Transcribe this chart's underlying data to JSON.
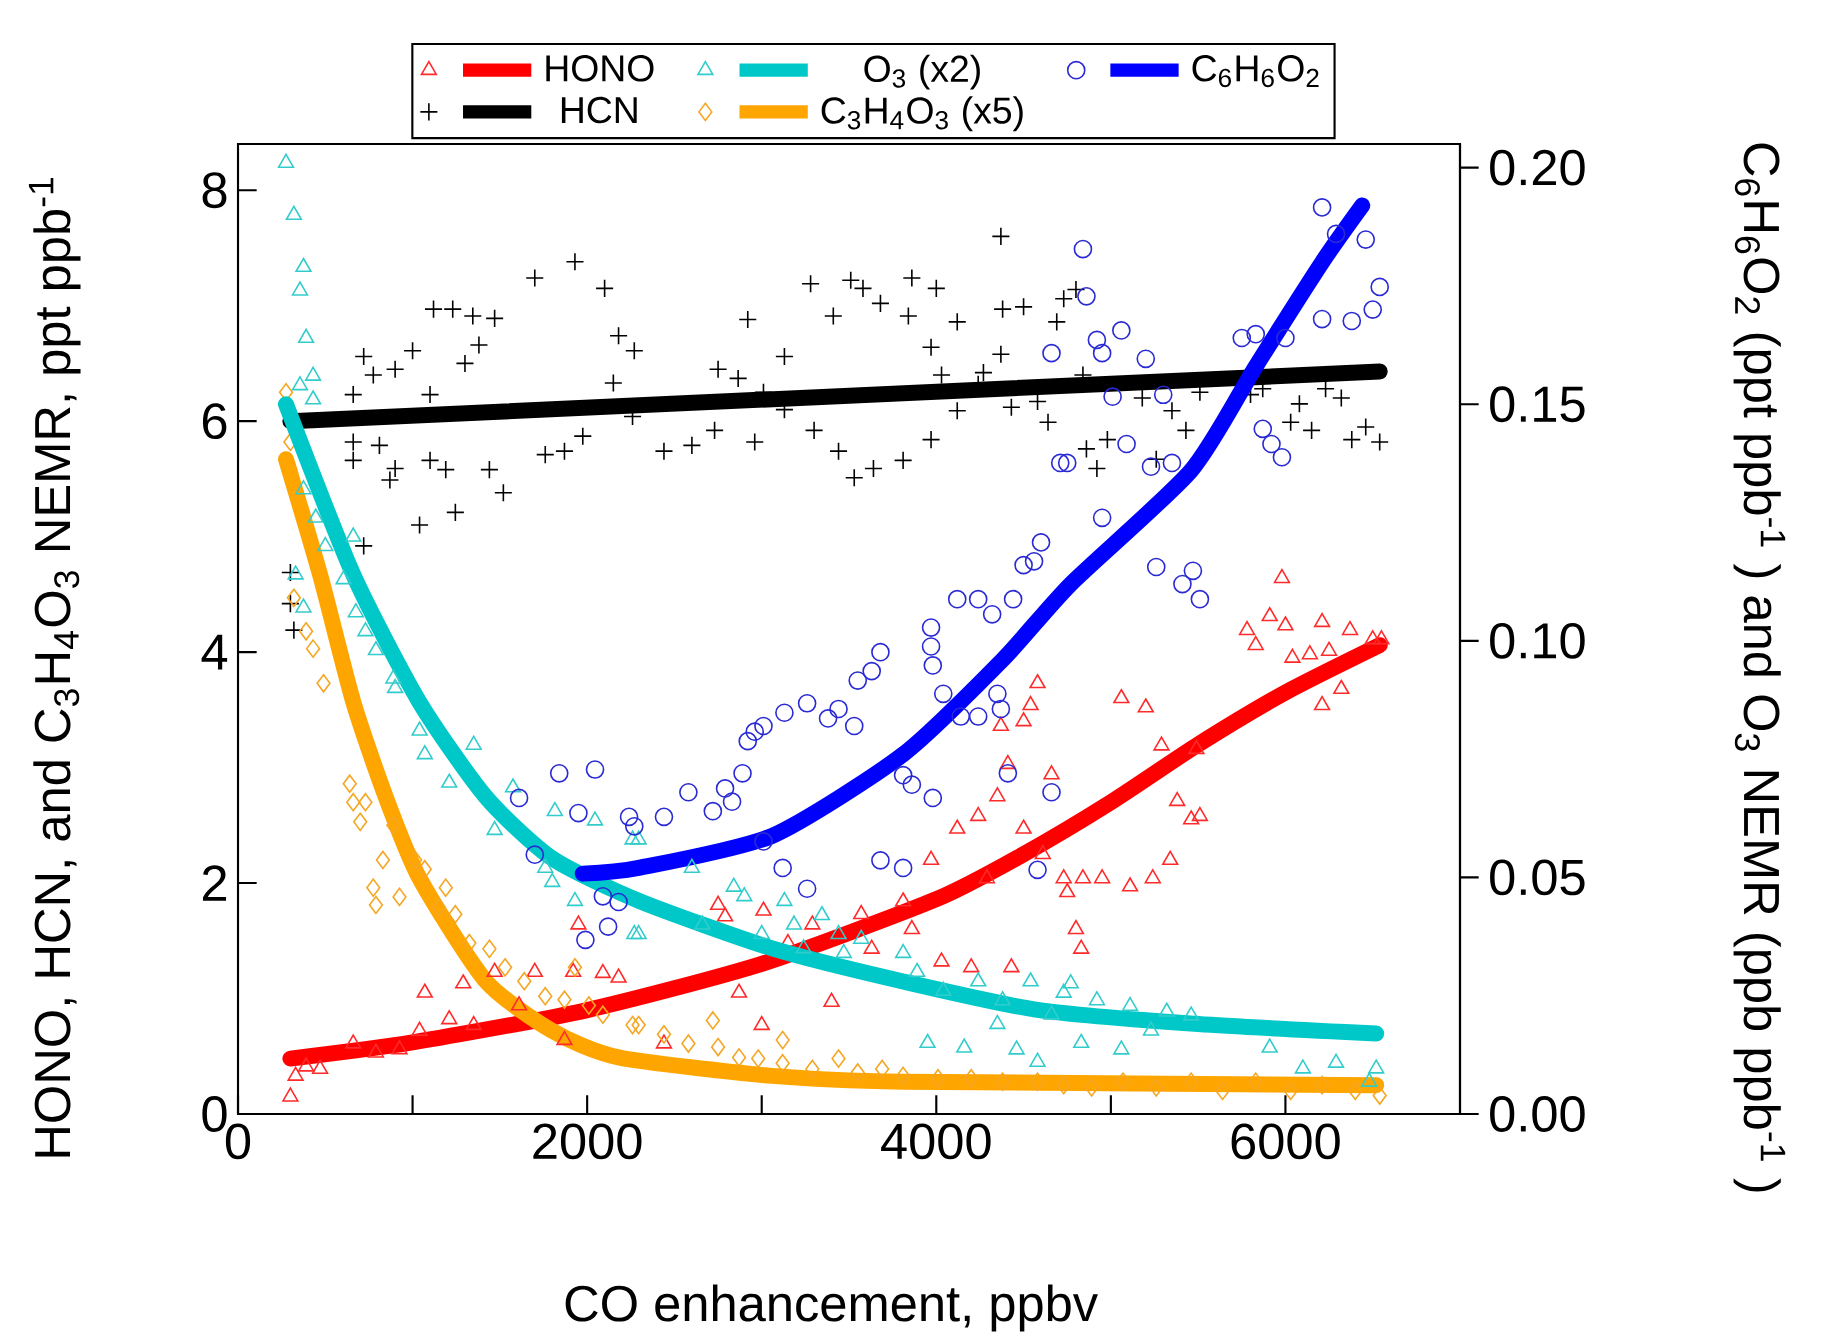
{
  "chart_data": {
    "type": "scatter",
    "xlabel": "CO enhancement, ppbv",
    "ylabel": "HONO, HCN, and C$_{3}$H$_{4}$O$_{3}$ NEMR, ppt ppb$^{-1}$",
    "y2label": "C$_{6}$H$_{6}$O$_{2}$ (ppt ppb$^{-1}$ ) and O$_{3}$ NEMR (ppb ppb$^{-1}$ )",
    "xlim": [
      0,
      7000
    ],
    "xticks": [
      0,
      {
        "value": 1000,
        "label": null
      },
      2000,
      {
        "value": 3000,
        "label": null
      },
      4000,
      {
        "value": 5000,
        "label": null
      },
      6000
    ],
    "ylim": [
      0,
      8.4
    ],
    "yticks": [
      0,
      2,
      4,
      6,
      8
    ],
    "y2lim": [
      0,
      0.205
    ],
    "y2ticks": [
      {
        "value": 0,
        "label": "0.00"
      },
      {
        "value": 0.05,
        "label": "0.05"
      },
      {
        "value": 0.1,
        "label": "0.10"
      },
      {
        "value": 0.15,
        "label": "0.15"
      },
      {
        "value": 0.2,
        "label": "0.20"
      }
    ],
    "legend": "top",
    "series": [
      {
        "type": "scatter",
        "marker": "triangle",
        "color": "#ff2a2a",
        "x": [
          300,
          330,
          390,
          470,
          660,
          790,
          925,
          1040,
          1070,
          1210,
          1290,
          1350,
          1470,
          1610,
          1700,
          1870,
          1920,
          1950,
          2090,
          2180,
          2440,
          2750,
          2790,
          2870,
          3000,
          3010,
          3150,
          3290,
          3400,
          3570,
          3630,
          3810,
          3860,
          3970,
          4030,
          4120,
          4200,
          4240,
          4290,
          4350,
          4370,
          4410,
          4430,
          4500,
          4500,
          4540,
          4580,
          4660,
          4610,
          4730,
          4750,
          4800,
          4830,
          4840,
          4950,
          5060,
          5110,
          5200,
          5240,
          5290,
          5340,
          5380,
          5460,
          5490,
          5510,
          5780,
          5830,
          5910,
          5980,
          6000,
          6040,
          6140,
          6210,
          6210,
          6250,
          6320,
          6370,
          6500,
          6550
        ],
        "values": [
          0.15,
          0.33,
          0.41,
          0.39,
          0.61,
          0.53,
          0.56,
          0.72,
          1.05,
          0.82,
          1.13,
          0.77,
          1.23,
          0.94,
          1.23,
          0.64,
          1.23,
          1.64,
          1.22,
          1.18,
          0.61,
          1.81,
          1.71,
          1.05,
          0.77,
          1.76,
          1.48,
          1.64,
          0.97,
          1.73,
          1.43,
          1.84,
          1.6,
          2.2,
          1.32,
          2.47,
          1.27,
          2.58,
          2.04,
          2.75,
          3.36,
          3.03,
          1.27,
          2.47,
          3.4,
          3.54,
          3.73,
          2.94,
          2.25,
          2.04,
          1.92,
          1.6,
          1.43,
          2.04,
          2.04,
          3.6,
          1.97,
          3.52,
          2.04,
          3.19,
          2.2,
          2.71,
          2.55,
          3.16,
          2.58,
          4.19,
          4.06,
          4.31,
          4.64,
          4.23,
          3.95,
          3.98,
          4.26,
          3.54,
          4.01,
          3.68,
          4.19,
          4.11,
          4.11
        ]
      },
      {
        "type": "line",
        "name": "HONO",
        "color": "#ff0000",
        "x": [
          300,
          1000,
          2000,
          3000,
          4000,
          4500,
          5000,
          5500,
          6000,
          6540
        ],
        "values": [
          0.48,
          0.62,
          0.9,
          1.3,
          1.86,
          2.25,
          2.7,
          3.2,
          3.65,
          4.06
        ]
      },
      {
        "type": "scatter",
        "marker": "triangle",
        "axis": "y2",
        "color": "#33cccc",
        "x": [
          275,
          320,
          375,
          355,
          390,
          430,
          355,
          430,
          375,
          445,
          330,
          375,
          500,
          660,
          605,
          675,
          730,
          790,
          890,
          900,
          1040,
          1070,
          1210,
          1350,
          1470,
          1575,
          1760,
          1800,
          1815,
          1930,
          2045,
          2260,
          2270,
          2295,
          2295,
          2600,
          2660,
          2840,
          2900,
          3000,
          3130,
          3185,
          3240,
          3345,
          3440,
          3470,
          3570,
          3810,
          3890,
          3950,
          4040,
          4160,
          4240,
          4350,
          4380,
          4460,
          4540,
          4580,
          4660,
          4730,
          4770,
          4830,
          4920,
          5060,
          5110,
          5230,
          5320,
          5460,
          5910,
          6100,
          6290,
          6480,
          6520
        ],
        "values": [
          0.201,
          0.19,
          0.179,
          0.174,
          0.164,
          0.156,
          0.154,
          0.151,
          0.132,
          0.126,
          0.114,
          0.107,
          0.12,
          0.122,
          0.113,
          0.106,
          0.102,
          0.098,
          0.092,
          0.09,
          0.081,
          0.076,
          0.07,
          0.078,
          0.06,
          0.069,
          0.052,
          0.049,
          0.064,
          0.045,
          0.062,
          0.058,
          0.038,
          0.058,
          0.038,
          0.052,
          0.04,
          0.048,
          0.046,
          0.038,
          0.045,
          0.04,
          0.035,
          0.042,
          0.038,
          0.034,
          0.037,
          0.034,
          0.03,
          0.015,
          0.026,
          0.014,
          0.028,
          0.019,
          0.024,
          0.0136,
          0.028,
          0.011,
          0.021,
          0.0256,
          0.0276,
          0.015,
          0.024,
          0.0136,
          0.0228,
          0.0176,
          0.0216,
          0.0208,
          0.014,
          0.0096,
          0.0108,
          0.0068,
          0.0096
        ]
      },
      {
        "type": "line",
        "name": "O$_{3}$ (x2)",
        "axis": "y2",
        "color": "#00c8c8",
        "x": [
          275,
          660,
          1040,
          1420,
          1800,
          2300,
          3060,
          3810,
          4580,
          5500,
          6520
        ],
        "values": [
          0.15,
          0.114,
          0.087,
          0.067,
          0.054,
          0.045,
          0.035,
          0.028,
          0.022,
          0.019,
          0.017
        ]
      },
      {
        "type": "scatter",
        "marker": "circle",
        "axis": "y2",
        "color": "#2a2ad4",
        "x": [
          1610,
          1700,
          1840,
          1950,
          2045,
          1990,
          2090,
          2120,
          2180,
          2240,
          2270,
          2440,
          2580,
          2720,
          2790,
          2830,
          2890,
          2920,
          2960,
          3010,
          3010,
          3120,
          3130,
          3260,
          3260,
          3380,
          3440,
          3530,
          3550,
          3630,
          3680,
          3680,
          3810,
          3810,
          3860,
          3970,
          3970,
          3980,
          3980,
          4040,
          4120,
          4140,
          4240,
          4240,
          4320,
          4350,
          4370,
          4410,
          4440,
          4500,
          4560,
          4580,
          4600,
          4660,
          4660,
          4710,
          4840,
          4860,
          4920,
          4950,
          5060,
          4750,
          4950,
          5010,
          5090,
          5200,
          5230,
          5260,
          5300,
          5350,
          5410,
          5470,
          5510,
          5750,
          5830,
          5870,
          5920,
          5980,
          6000,
          6210,
          6210,
          6290,
          6380,
          6460,
          6500,
          6540
        ],
        "values": [
          0.0668,
          0.0548,
          0.072,
          0.0636,
          0.0728,
          0.0368,
          0.046,
          0.0396,
          0.0448,
          0.0628,
          0.0608,
          0.0628,
          0.068,
          0.064,
          0.0688,
          0.066,
          0.072,
          0.0788,
          0.0808,
          0.082,
          0.0576,
          0.052,
          0.0848,
          0.0868,
          0.0476,
          0.0836,
          0.0856,
          0.082,
          0.0916,
          0.0936,
          0.0976,
          0.0536,
          0.052,
          0.0716,
          0.0696,
          0.1028,
          0.0988,
          0.0948,
          0.0668,
          0.0888,
          0.1088,
          0.084,
          0.1088,
          0.084,
          0.1056,
          0.0888,
          0.0856,
          0.072,
          0.1088,
          0.116,
          0.1168,
          0.0516,
          0.1208,
          0.068,
          0.1608,
          0.1376,
          0.1828,
          0.1728,
          0.1636,
          0.1608,
          0.1656,
          0.1376,
          0.126,
          0.1516,
          0.1416,
          0.1596,
          0.1368,
          0.1156,
          0.152,
          0.1376,
          0.112,
          0.1148,
          0.1088,
          0.164,
          0.1648,
          0.1448,
          0.1416,
          0.1388,
          0.164,
          0.168,
          0.1916,
          0.186,
          0.1676,
          0.1848,
          0.17,
          0.1748
        ]
      },
      {
        "type": "line",
        "name": "C$_{6}$H$_{6}$O$_{2}$",
        "axis": "y2",
        "color": "#0000ff",
        "x": [
          1975,
          2295,
          3060,
          3810,
          4380,
          4770,
          5460,
          5830,
          6210,
          6440
        ],
        "values": [
          0.0508,
          0.052,
          0.0588,
          0.076,
          0.096,
          0.112,
          0.136,
          0.158,
          0.18,
          0.192
        ]
      },
      {
        "type": "scatter",
        "marker": "cross",
        "color": "#000000",
        "x": [
          300,
          300,
          320,
          660,
          660,
          660,
          720,
          775,
          810,
          870,
          900,
          900,
          1000,
          1040,
          1100,
          1100,
          1120,
          1190,
          1230,
          1245,
          1300,
          1345,
          1380,
          1440,
          1470,
          1520,
          1700,
          1760,
          1870,
          1930,
          1975,
          2100,
          2150,
          2180,
          2260,
          2270,
          720,
          2440,
          2600,
          2730,
          2750,
          2865,
          2920,
          2960,
          3010,
          3130,
          3130,
          3280,
          3300,
          3410,
          3440,
          3510,
          3530,
          3580,
          3640,
          3680,
          3810,
          3840,
          3860,
          3970,
          3970,
          4000,
          4030,
          4120,
          4120,
          4240,
          4270,
          4370,
          4380,
          4370,
          4430,
          4500,
          4580,
          4640,
          4690,
          4730,
          4800,
          4840,
          4860,
          4920,
          4980,
          5180,
          5260,
          5350,
          5430,
          5510,
          5800,
          5870,
          6030,
          6080,
          6150,
          6230,
          6320,
          6380,
          6460,
          6540
        ],
        "values": [
          4.69,
          4.42,
          4.19,
          6.23,
          5.82,
          5.66,
          6.56,
          6.4,
          5.79,
          5.49,
          5.59,
          6.45,
          6.61,
          5.1,
          6.23,
          5.66,
          6.97,
          5.58,
          6.97,
          5.21,
          6.5,
          6.91,
          6.66,
          5.58,
          6.89,
          5.38,
          7.24,
          5.71,
          5.74,
          7.38,
          5.87,
          7.15,
          6.33,
          6.74,
          6.04,
          6.61,
          4.92,
          5.74,
          5.79,
          5.92,
          6.45,
          6.37,
          6.88,
          5.82,
          6.25,
          6.56,
          6.1,
          7.19,
          5.92,
          6.91,
          5.74,
          7.22,
          5.51,
          7.15,
          5.59,
          7.02,
          5.66,
          6.91,
          7.24,
          6.64,
          5.84,
          7.15,
          6.4,
          6.09,
          6.86,
          6.32,
          6.42,
          7.6,
          6.97,
          6.58,
          6.12,
          6.99,
          6.17,
          5.99,
          6.86,
          7.06,
          7.14,
          6.4,
          5.76,
          5.59,
          5.84,
          6.2,
          5.67,
          6.09,
          5.92,
          6.25,
          6.23,
          6.28,
          5.99,
          6.15,
          5.92,
          6.28,
          6.2,
          5.84,
          5.95,
          5.82
        ]
      },
      {
        "type": "line",
        "name": "HCN",
        "color": "#000000",
        "x": [
          300,
          6540
        ],
        "values": [
          6.0,
          6.43
        ]
      },
      {
        "type": "scatter",
        "marker": "diamond",
        "color": "#f5a623",
        "x": [
          275,
          300,
          320,
          390,
          430,
          490,
          640,
          660,
          700,
          730,
          890,
          775,
          790,
          925,
          830,
          1015,
          1070,
          1190,
          1150,
          1245,
          1325,
          1440,
          1530,
          1640,
          1760,
          1870,
          1930,
          2010,
          2090,
          2260,
          2295,
          2440,
          2580,
          2720,
          2750,
          2870,
          2980,
          3120,
          3120,
          3290,
          3440,
          3550,
          3690,
          3810,
          4010,
          4200,
          4380,
          4580,
          4730,
          4890,
          5070,
          5260,
          5460,
          5640,
          5830,
          6030,
          6210,
          6400,
          6540
        ],
        "values": [
          6.25,
          5.82,
          4.47,
          4.18,
          4.03,
          3.73,
          2.86,
          2.7,
          2.53,
          2.7,
          2.5,
          1.96,
          1.81,
          1.88,
          2.2,
          2.2,
          2.12,
          1.96,
          1.79,
          1.73,
          1.48,
          1.43,
          1.27,
          1.15,
          1.02,
          0.99,
          1.27,
          0.94,
          0.86,
          0.77,
          0.77,
          0.69,
          0.61,
          0.81,
          0.58,
          0.49,
          0.48,
          0.64,
          0.44,
          0.39,
          0.48,
          0.36,
          0.39,
          0.33,
          0.31,
          0.31,
          0.28,
          0.28,
          0.25,
          0.23,
          0.28,
          0.23,
          0.28,
          0.2,
          0.28,
          0.2,
          0.25,
          0.2,
          0.16
        ]
      },
      {
        "type": "line",
        "name": "C$_{3}$H$_{4}$O$_{3}$ (x5)",
        "color": "#ffa500",
        "x": [
          275,
          470,
          660,
          845,
          1040,
          1420,
          1800,
          2180,
          3060,
          3810,
          6520
        ],
        "values": [
          5.67,
          4.67,
          3.57,
          2.75,
          2.04,
          1.15,
          0.72,
          0.49,
          0.33,
          0.28,
          0.25
        ]
      }
    ]
  }
}
